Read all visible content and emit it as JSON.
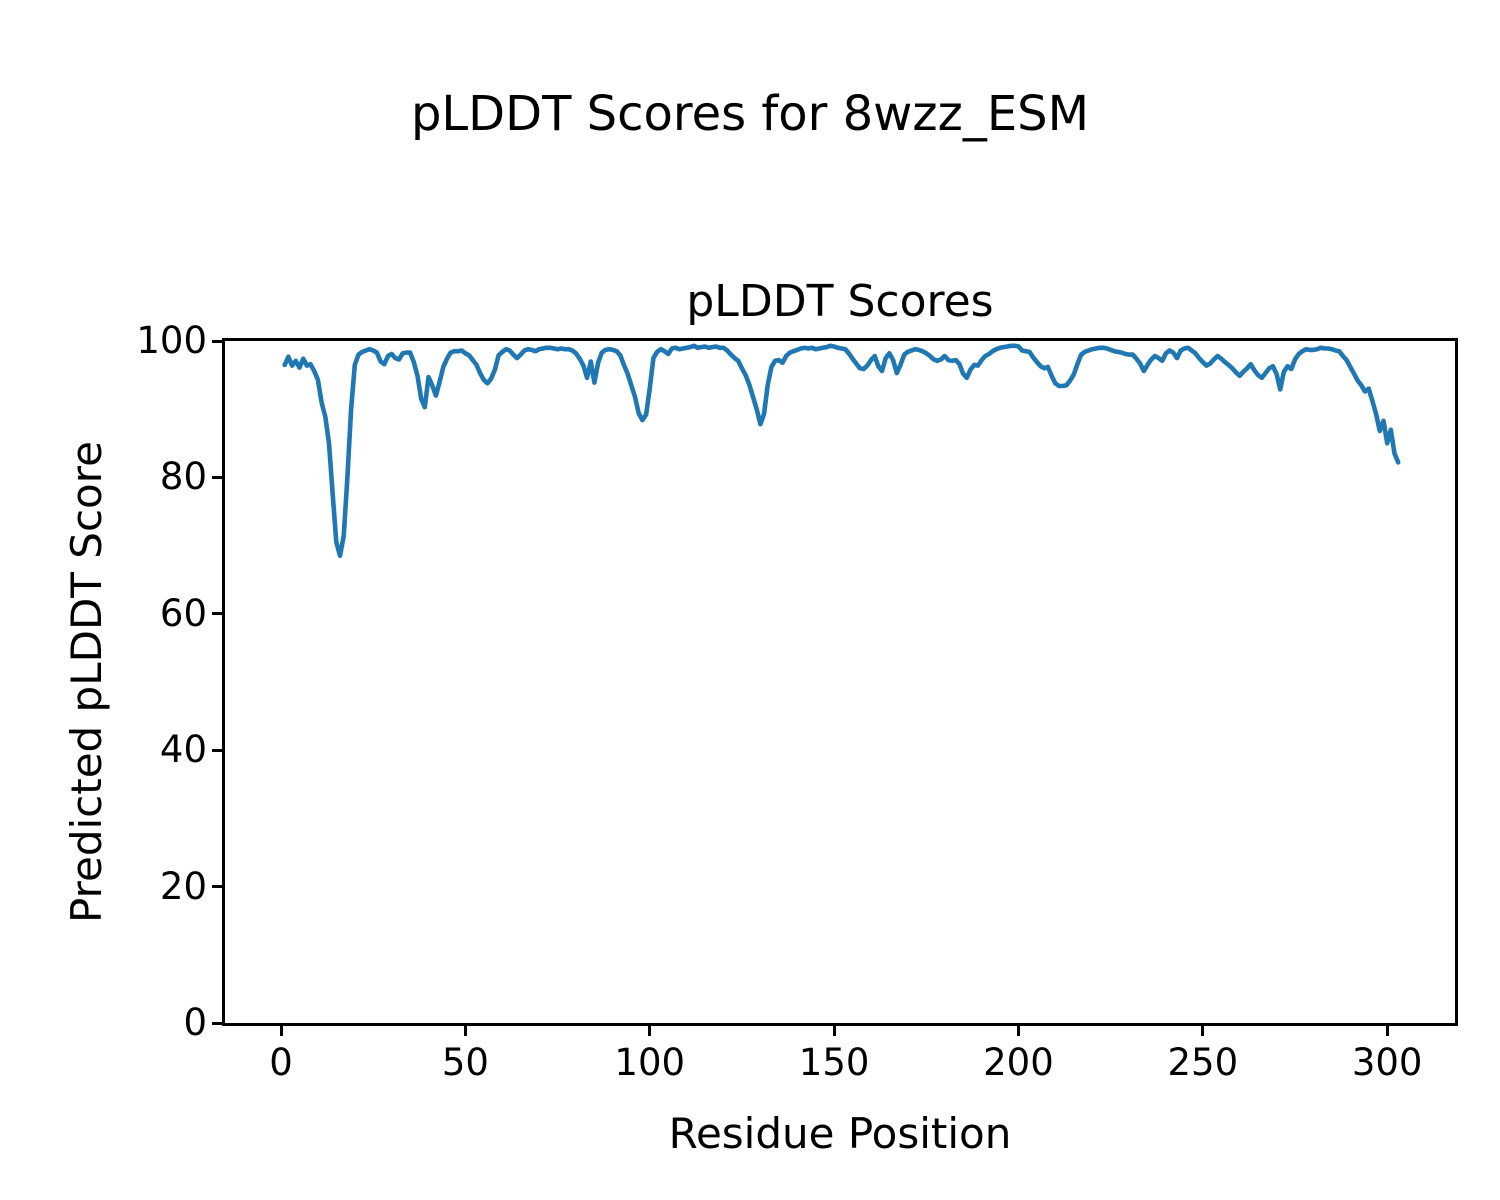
{
  "figure": {
    "suptitle": "pLDDT Scores for 8wzz_ESM",
    "axes_title": "pLDDT Scores",
    "xlabel": "Residue Position",
    "ylabel": "Predicted pLDDT Score"
  },
  "chart_data": {
    "type": "line",
    "title": "pLDDT Scores",
    "suptitle": "pLDDT Scores for 8wzz_ESM",
    "xlabel": "Residue Position",
    "ylabel": "Predicted pLDDT Score",
    "line_color": "#1f77b4",
    "background_color": "#ffffff",
    "grid": false,
    "legend": false,
    "xlim": [
      -15.2,
      318.4
    ],
    "ylim": [
      0,
      100
    ],
    "x_ticks": [
      0,
      50,
      100,
      150,
      200,
      250,
      300
    ],
    "y_ticks": [
      0,
      20,
      40,
      60,
      80,
      100
    ],
    "x_start": 1,
    "x_step": 1,
    "values": [
      96.5,
      97.7,
      96.4,
      97.1,
      96.1,
      97.4,
      96.4,
      96.6,
      95.6,
      94.3,
      91.0,
      88.9,
      85.0,
      77.5,
      70.5,
      68.5,
      71.4,
      80.0,
      90.0,
      96.5,
      98.0,
      98.4,
      98.6,
      98.8,
      98.6,
      98.3,
      97.0,
      96.6,
      97.8,
      98.1,
      97.5,
      97.3,
      98.2,
      98.3,
      98.3,
      96.9,
      94.9,
      91.5,
      90.3,
      94.7,
      93.5,
      92.0,
      94.0,
      96.2,
      97.4,
      98.3,
      98.5,
      98.5,
      98.6,
      98.2,
      97.9,
      97.2,
      96.5,
      95.3,
      94.3,
      93.8,
      94.5,
      95.8,
      97.9,
      98.4,
      98.8,
      98.6,
      98.0,
      97.5,
      98.0,
      98.6,
      98.8,
      98.7,
      98.5,
      98.8,
      98.9,
      99.0,
      99.0,
      98.9,
      98.8,
      98.9,
      98.8,
      98.8,
      98.6,
      98.2,
      97.4,
      96.4,
      94.6,
      97.0,
      93.9,
      96.8,
      98.3,
      98.7,
      98.8,
      98.7,
      98.5,
      97.9,
      96.5,
      95.2,
      93.5,
      91.8,
      89.4,
      88.4,
      89.2,
      93.0,
      97.5,
      98.4,
      98.8,
      98.5,
      98.1,
      98.9,
      99.0,
      98.8,
      98.9,
      99.0,
      99.1,
      99.3,
      99.0,
      99.1,
      99.2,
      99.0,
      99.1,
      99.2,
      99.0,
      99.0,
      98.6,
      98.0,
      97.5,
      97.1,
      96.0,
      95.0,
      93.6,
      91.8,
      90.0,
      87.8,
      89.3,
      93.5,
      96.2,
      97.1,
      97.2,
      96.8,
      97.8,
      98.3,
      98.5,
      98.7,
      98.9,
      99.0,
      98.9,
      99.0,
      98.8,
      98.9,
      99.0,
      99.1,
      99.3,
      99.2,
      99.0,
      98.9,
      98.8,
      98.2,
      97.4,
      96.7,
      96.0,
      95.9,
      96.4,
      97.2,
      97.8,
      96.3,
      95.6,
      97.5,
      98.2,
      97.2,
      95.3,
      96.5,
      98.0,
      98.4,
      98.6,
      98.8,
      98.7,
      98.5,
      98.2,
      97.8,
      97.3,
      97.1,
      97.3,
      97.8,
      97.2,
      97.1,
      97.2,
      96.6,
      95.2,
      94.6,
      95.8,
      96.5,
      96.4,
      97.2,
      97.8,
      98.1,
      98.5,
      98.8,
      99.0,
      99.1,
      99.2,
      99.3,
      99.3,
      99.2,
      98.6,
      98.5,
      98.4,
      97.6,
      96.9,
      96.3,
      96.0,
      96.2,
      94.9,
      93.8,
      93.4,
      93.4,
      93.5,
      94.2,
      95.1,
      96.6,
      98.0,
      98.4,
      98.6,
      98.8,
      98.9,
      99.0,
      99.0,
      98.9,
      98.7,
      98.5,
      98.4,
      98.3,
      98.1,
      98.0,
      98.0,
      97.4,
      96.7,
      95.6,
      96.5,
      97.3,
      97.8,
      97.5,
      97.1,
      98.2,
      98.6,
      98.3,
      97.5,
      98.6,
      98.9,
      99.0,
      98.6,
      98.2,
      97.5,
      96.9,
      96.4,
      96.7,
      97.3,
      97.8,
      97.4,
      96.9,
      96.5,
      96.0,
      95.4,
      94.9,
      95.5,
      96.0,
      96.6,
      95.7,
      95.0,
      94.6,
      95.3,
      96.0,
      96.3,
      95.2,
      92.9,
      95.5,
      96.3,
      95.9,
      97.3,
      98.1,
      98.5,
      98.8,
      98.7,
      98.7,
      98.8,
      99.0,
      98.9,
      98.9,
      98.8,
      98.6,
      98.5,
      97.8,
      97.2,
      96.2,
      95.2,
      94.2,
      93.5,
      92.6,
      93.0,
      91.2,
      89.3,
      86.8,
      88.3,
      85.0,
      87.0,
      83.5,
      82.2
    ]
  }
}
